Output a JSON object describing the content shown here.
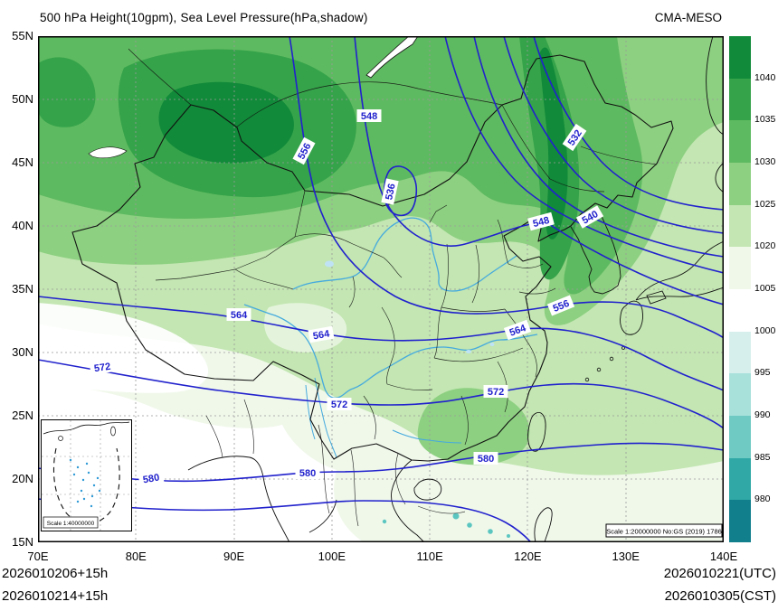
{
  "header": {
    "title": "500 hPa Height(10gpm), Sea Level Pressure(hPa,shadow)",
    "model": "CMA-MESO"
  },
  "axes": {
    "x": [
      "70E",
      "80E",
      "90E",
      "100E",
      "110E",
      "120E",
      "130E",
      "140E"
    ],
    "y": [
      "55N",
      "50N",
      "45N",
      "40N",
      "35N",
      "30N",
      "25N",
      "20N",
      "15N"
    ]
  },
  "colorbar": {
    "ticks": [
      "1040",
      "1035",
      "1030",
      "1025",
      "1020",
      "1005",
      "1000",
      "995",
      "990",
      "985",
      "980"
    ],
    "colors": [
      "#118a39",
      "#35a34a",
      "#5eba60",
      "#8dd081",
      "#c3e6b2",
      "#f0f8ea",
      "#ffffff",
      "#d6efec",
      "#a8e0da",
      "#6fcac4",
      "#2fa8a6",
      "#117f8c"
    ]
  },
  "contour_labels": [
    "548",
    "556",
    "536",
    "532",
    "548",
    "540",
    "556",
    "564",
    "564",
    "564",
    "572",
    "572",
    "572",
    "580",
    "580",
    "580"
  ],
  "colors": {
    "contour": "#2121cd",
    "river": "#45aade",
    "land_border": "#111111",
    "grid": "#999999",
    "lake": "#bfe3f5",
    "low_shade": "#5bc6c0",
    "shade_levels": [
      "#f0f8ea",
      "#c3e6b2",
      "#8dd081",
      "#5eba60",
      "#35a34a",
      "#118a39"
    ]
  },
  "inset": {
    "scale_label": "Scale 1:40000000"
  },
  "map_note": "Scale 1:20000000 No:GS (2019) 1786",
  "footer": {
    "left_line1": "2026010206+15h",
    "left_line2": "2026010214+15h",
    "right_line1": "2026010221(UTC)",
    "right_line2": "2026010305(CST)"
  }
}
